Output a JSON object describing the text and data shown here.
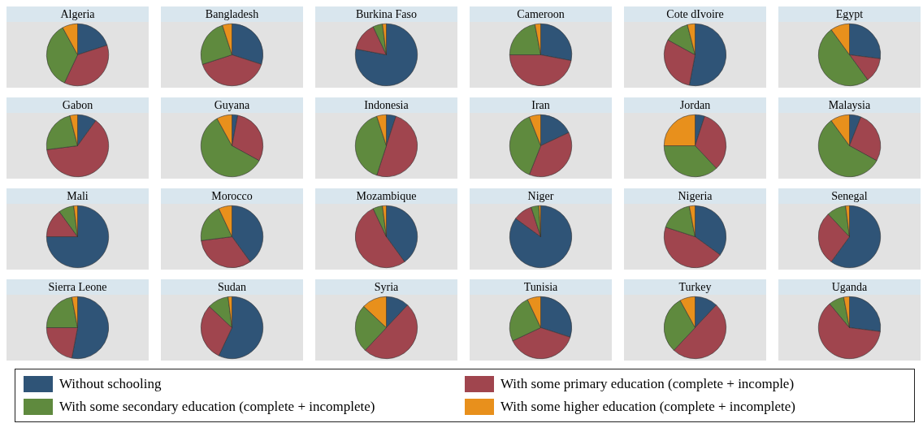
{
  "chart_data": [
    {
      "type": "pie",
      "title": "Algeria",
      "legend": "bottom",
      "categories": [
        "Without schooling",
        "With some primary education (complete + incomple)",
        "With some secondary education (complete + incomplete)",
        "With some higher education (complete + incomplete)"
      ],
      "values": [
        20,
        37,
        35,
        8
      ],
      "colors": [
        "#2f5477",
        "#a0454e",
        "#5f8a3e",
        "#e8901c"
      ]
    },
    {
      "type": "pie",
      "title": "Bangladesh",
      "categories": [
        null,
        null,
        null,
        null
      ],
      "values": [
        30,
        40,
        25,
        5
      ],
      "colors": [
        "#2f5477",
        "#a0454e",
        "#5f8a3e",
        "#e8901c"
      ]
    },
    {
      "type": "pie",
      "title": "Burkina Faso",
      "categories": [
        null,
        null,
        null,
        null
      ],
      "values": [
        78,
        15,
        5,
        2
      ],
      "colors": [
        "#2f5477",
        "#a0454e",
        "#5f8a3e",
        "#e8901c"
      ]
    },
    {
      "type": "pie",
      "title": "Cameroon",
      "categories": [
        null,
        null,
        null,
        null
      ],
      "values": [
        28,
        47,
        22,
        3
      ],
      "colors": [
        "#2f5477",
        "#a0454e",
        "#5f8a3e",
        "#e8901c"
      ]
    },
    {
      "type": "pie",
      "title": "Cote dIvoire",
      "categories": [
        null,
        null,
        null,
        null
      ],
      "values": [
        53,
        30,
        13,
        4
      ],
      "colors": [
        "#2f5477",
        "#a0454e",
        "#5f8a3e",
        "#e8901c"
      ]
    },
    {
      "type": "pie",
      "title": "Egypt",
      "categories": [
        null,
        null,
        null,
        null
      ],
      "values": [
        27,
        13,
        50,
        10
      ],
      "colors": [
        "#2f5477",
        "#a0454e",
        "#5f8a3e",
        "#e8901c"
      ]
    },
    {
      "type": "pie",
      "title": "Gabon",
      "categories": [
        null,
        null,
        null,
        null
      ],
      "values": [
        10,
        63,
        23,
        4
      ],
      "colors": [
        "#2f5477",
        "#a0454e",
        "#5f8a3e",
        "#e8901c"
      ]
    },
    {
      "type": "pie",
      "title": "Guyana",
      "categories": [
        null,
        null,
        null,
        null
      ],
      "values": [
        3,
        30,
        59,
        8
      ],
      "colors": [
        "#2f5477",
        "#a0454e",
        "#5f8a3e",
        "#e8901c"
      ]
    },
    {
      "type": "pie",
      "title": "Indonesia",
      "categories": [
        null,
        null,
        null,
        null
      ],
      "values": [
        5,
        50,
        40,
        5
      ],
      "colors": [
        "#2f5477",
        "#a0454e",
        "#5f8a3e",
        "#e8901c"
      ]
    },
    {
      "type": "pie",
      "title": "Iran",
      "categories": [
        null,
        null,
        null,
        null
      ],
      "values": [
        18,
        38,
        38,
        6
      ],
      "colors": [
        "#2f5477",
        "#a0454e",
        "#5f8a3e",
        "#e8901c"
      ]
    },
    {
      "type": "pie",
      "title": "Jordan",
      "categories": [
        null,
        null,
        null,
        null
      ],
      "values": [
        5,
        33,
        37,
        25
      ],
      "colors": [
        "#2f5477",
        "#a0454e",
        "#5f8a3e",
        "#e8901c"
      ]
    },
    {
      "type": "pie",
      "title": "Malaysia",
      "categories": [
        null,
        null,
        null,
        null
      ],
      "values": [
        6,
        27,
        57,
        10
      ],
      "colors": [
        "#2f5477",
        "#a0454e",
        "#5f8a3e",
        "#e8901c"
      ]
    },
    {
      "type": "pie",
      "title": "Mali",
      "categories": [
        null,
        null,
        null,
        null
      ],
      "values": [
        75,
        15,
        8,
        2
      ],
      "colors": [
        "#2f5477",
        "#a0454e",
        "#5f8a3e",
        "#e8901c"
      ]
    },
    {
      "type": "pie",
      "title": "Morocco",
      "categories": [
        null,
        null,
        null,
        null
      ],
      "values": [
        40,
        33,
        20,
        7
      ],
      "colors": [
        "#2f5477",
        "#a0454e",
        "#5f8a3e",
        "#e8901c"
      ]
    },
    {
      "type": "pie",
      "title": "Mozambique",
      "categories": [
        null,
        null,
        null,
        null
      ],
      "values": [
        40,
        53,
        5,
        2
      ],
      "colors": [
        "#2f5477",
        "#a0454e",
        "#5f8a3e",
        "#e8901c"
      ]
    },
    {
      "type": "pie",
      "title": "Niger",
      "categories": [
        null,
        null,
        null,
        null
      ],
      "values": [
        85,
        10,
        4,
        1
      ],
      "colors": [
        "#2f5477",
        "#a0454e",
        "#5f8a3e",
        "#e8901c"
      ]
    },
    {
      "type": "pie",
      "title": "Nigeria",
      "categories": [
        null,
        null,
        null,
        null
      ],
      "values": [
        35,
        45,
        17,
        3
      ],
      "colors": [
        "#2f5477",
        "#a0454e",
        "#5f8a3e",
        "#e8901c"
      ]
    },
    {
      "type": "pie",
      "title": "Senegal",
      "categories": [
        null,
        null,
        null,
        null
      ],
      "values": [
        60,
        28,
        10,
        2
      ],
      "colors": [
        "#2f5477",
        "#a0454e",
        "#5f8a3e",
        "#e8901c"
      ]
    },
    {
      "type": "pie",
      "title": "Sierra Leone",
      "categories": [
        null,
        null,
        null,
        null
      ],
      "values": [
        53,
        22,
        22,
        3
      ],
      "colors": [
        "#2f5477",
        "#a0454e",
        "#5f8a3e",
        "#e8901c"
      ]
    },
    {
      "type": "pie",
      "title": "Sudan",
      "categories": [
        null,
        null,
        null,
        null
      ],
      "values": [
        57,
        30,
        11,
        2
      ],
      "colors": [
        "#2f5477",
        "#a0454e",
        "#5f8a3e",
        "#e8901c"
      ]
    },
    {
      "type": "pie",
      "title": "Syria",
      "categories": [
        null,
        null,
        null,
        null
      ],
      "values": [
        12,
        50,
        25,
        13
      ],
      "colors": [
        "#2f5477",
        "#a0454e",
        "#5f8a3e",
        "#e8901c"
      ]
    },
    {
      "type": "pie",
      "title": "Tunisia",
      "categories": [
        null,
        null,
        null,
        null
      ],
      "values": [
        30,
        38,
        25,
        7
      ],
      "colors": [
        "#2f5477",
        "#a0454e",
        "#5f8a3e",
        "#e8901c"
      ]
    },
    {
      "type": "pie",
      "title": "Turkey",
      "categories": [
        null,
        null,
        null,
        null
      ],
      "values": [
        12,
        50,
        30,
        8
      ],
      "colors": [
        "#2f5477",
        "#a0454e",
        "#5f8a3e",
        "#e8901c"
      ]
    },
    {
      "type": "pie",
      "title": "Uganda",
      "categories": [
        null,
        null,
        null,
        null
      ],
      "values": [
        27,
        62,
        8,
        3
      ],
      "colors": [
        "#2f5477",
        "#a0454e",
        "#5f8a3e",
        "#e8901c"
      ]
    }
  ]
}
